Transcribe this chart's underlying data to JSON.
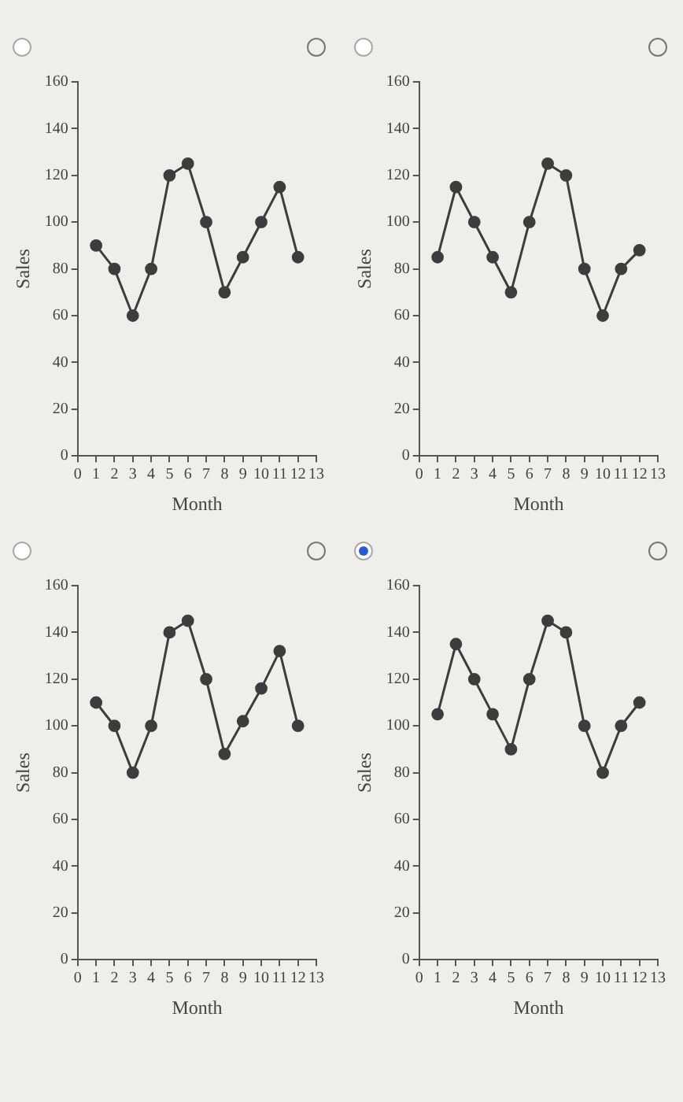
{
  "chart_data": [
    {
      "type": "line",
      "xlabel": "Month",
      "ylabel": "Sales",
      "x": [
        1,
        2,
        3,
        4,
        5,
        6,
        7,
        8,
        9,
        10,
        11,
        12
      ],
      "series": [
        {
          "color": "#3d3d3d",
          "values": [
            90,
            80,
            60,
            80,
            120,
            125,
            100,
            70,
            85,
            100,
            115,
            85
          ]
        }
      ],
      "xlim": [
        0,
        13
      ],
      "xticks": [
        0,
        1,
        2,
        3,
        4,
        5,
        6,
        7,
        8,
        9,
        10,
        11,
        12,
        13
      ],
      "ylim": [
        0,
        160
      ],
      "yticks": [
        0,
        20,
        40,
        60,
        80,
        100,
        120,
        140,
        160
      ],
      "grid": false,
      "marker": "circle",
      "line_style": "solid"
    },
    {
      "type": "line",
      "xlabel": "Month",
      "ylabel": "Sales",
      "x": [
        1,
        2,
        3,
        4,
        5,
        6,
        7,
        8,
        9,
        10,
        11,
        12
      ],
      "series": [
        {
          "color": "#3d3d3d",
          "values": [
            85,
            115,
            100,
            85,
            70,
            100,
            125,
            120,
            80,
            60,
            80,
            88
          ]
        }
      ],
      "xlim": [
        0,
        13
      ],
      "xticks": [
        0,
        1,
        2,
        3,
        4,
        5,
        6,
        7,
        8,
        9,
        10,
        11,
        12,
        13
      ],
      "ylim": [
        0,
        160
      ],
      "yticks": [
        0,
        20,
        40,
        60,
        80,
        100,
        120,
        140,
        160
      ],
      "grid": false,
      "marker": "circle",
      "line_style": "solid"
    },
    {
      "type": "line",
      "xlabel": "Month",
      "ylabel": "Sales",
      "x": [
        1,
        2,
        3,
        4,
        5,
        6,
        7,
        8,
        9,
        10,
        11,
        12
      ],
      "series": [
        {
          "color": "#3d3d3d",
          "values": [
            110,
            100,
            80,
            100,
            140,
            145,
            120,
            88,
            102,
            116,
            132,
            100
          ]
        }
      ],
      "xlim": [
        0,
        13
      ],
      "xticks": [
        0,
        1,
        2,
        3,
        4,
        5,
        6,
        7,
        8,
        9,
        10,
        11,
        12,
        13
      ],
      "ylim": [
        0,
        160
      ],
      "yticks": [
        0,
        20,
        40,
        60,
        80,
        100,
        120,
        140,
        160
      ],
      "grid": false,
      "marker": "circle",
      "line_style": "solid"
    },
    {
      "type": "line",
      "xlabel": "Month",
      "ylabel": "Sales",
      "x": [
        1,
        2,
        3,
        4,
        5,
        6,
        7,
        8,
        9,
        10,
        11,
        12
      ],
      "series": [
        {
          "color": "#3d3d3d",
          "values": [
            105,
            135,
            120,
            105,
            90,
            120,
            145,
            140,
            100,
            80,
            100,
            110
          ]
        }
      ],
      "xlim": [
        0,
        13
      ],
      "xticks": [
        0,
        1,
        2,
        3,
        4,
        5,
        6,
        7,
        8,
        9,
        10,
        11,
        12,
        13
      ],
      "ylim": [
        0,
        160
      ],
      "yticks": [
        0,
        20,
        40,
        60,
        80,
        100,
        120,
        140,
        160
      ],
      "grid": false,
      "marker": "circle",
      "line_style": "solid"
    }
  ]
}
